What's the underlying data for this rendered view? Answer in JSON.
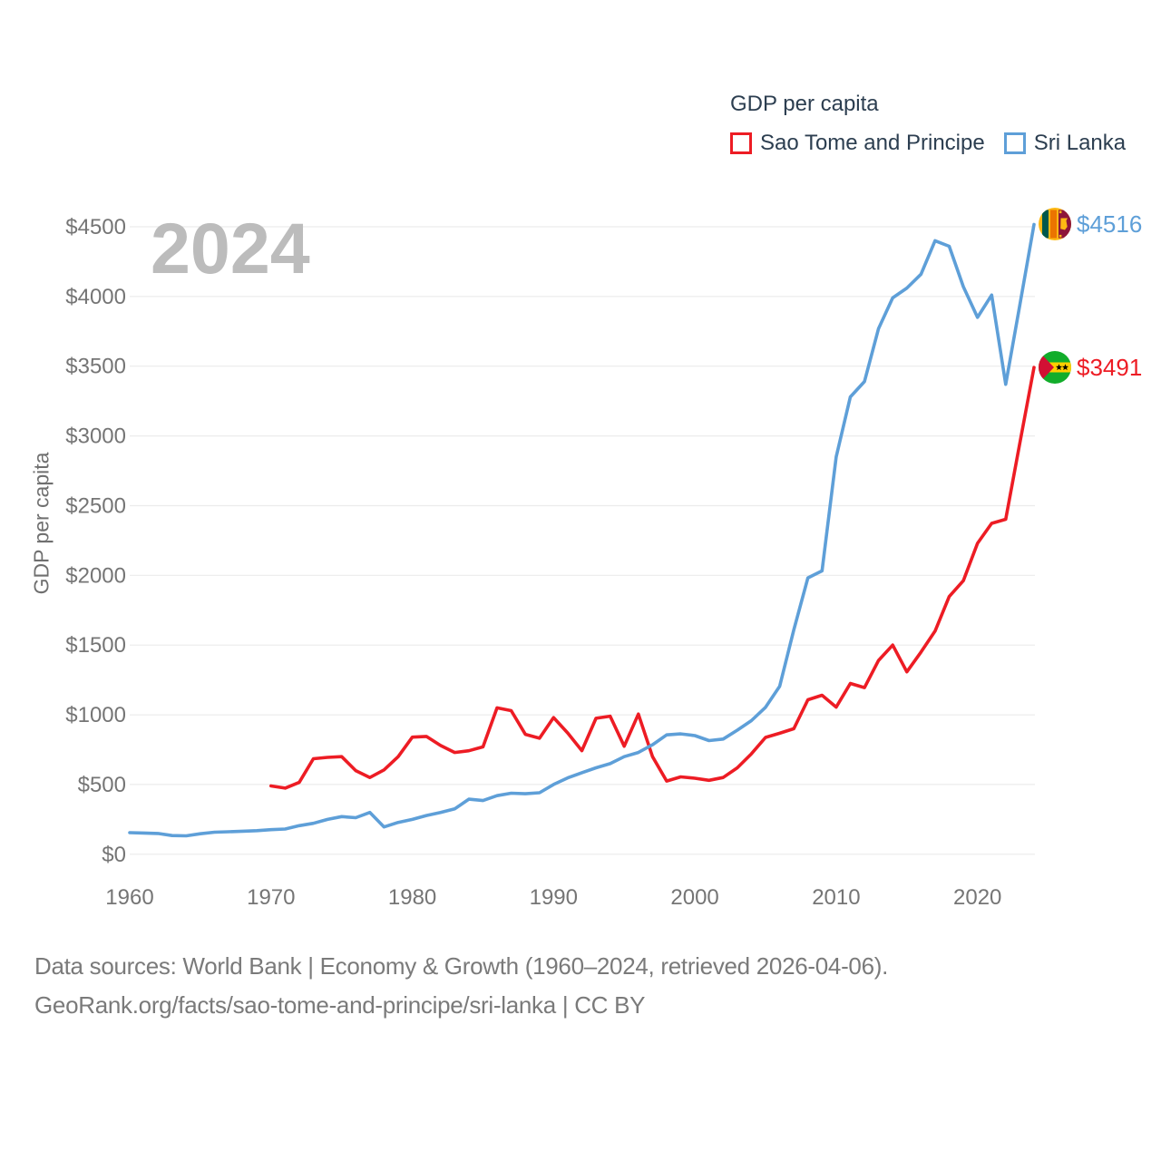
{
  "legend": {
    "title": "GDP per capita",
    "items": [
      {
        "label": "Sao Tome and Principe"
      },
      {
        "label": "Sri Lanka"
      }
    ]
  },
  "chart_data": {
    "type": "line",
    "title": "GDP per capita",
    "watermark": "2024",
    "ylabel": "GDP per capita",
    "xlabel": "",
    "grid": true,
    "legend_position": "top-right",
    "xlim": [
      1960,
      2024
    ],
    "ylim": [
      0,
      4700
    ],
    "ytick_values": [
      0,
      500,
      1000,
      1500,
      2000,
      2500,
      3000,
      3500,
      4000,
      4500
    ],
    "ytick_labels": [
      "$0",
      "$500",
      "$1000",
      "$1500",
      "$2000",
      "$2500",
      "$3000",
      "$3500",
      "$4000",
      "$4500"
    ],
    "xtick_values": [
      1960,
      1970,
      1980,
      1990,
      2000,
      2010,
      2020
    ],
    "series": [
      {
        "name": "Sao Tome and Principe",
        "color": "#ed1c24",
        "start_year": 1970,
        "values": [
          490,
          474,
          515,
          685,
          695,
          700,
          600,
          550,
          605,
          700,
          840,
          845,
          780,
          730,
          742,
          770,
          1050,
          1030,
          860,
          832,
          980,
          870,
          743,
          975,
          990,
          775,
          1005,
          700,
          525,
          555,
          545,
          530,
          550,
          620,
          720,
          838,
          868,
          900,
          1108,
          1140,
          1055,
          1225,
          1195,
          1390,
          1500,
          1308,
          1450,
          1600,
          1848,
          1962,
          2230,
          2373,
          2402,
          2950,
          3491
        ]
      },
      {
        "name": "Sri Lanka",
        "color": "#5e9fd8",
        "start_year": 1960,
        "values": [
          155,
          152,
          149,
          134,
          132,
          147,
          158,
          161,
          165,
          169,
          176,
          181,
          205,
          222,
          250,
          270,
          262,
          300,
          196,
          228,
          250,
          278,
          300,
          325,
          395,
          385,
          420,
          438,
          434,
          441,
          500,
          548,
          585,
          620,
          650,
          700,
          730,
          785,
          856,
          863,
          851,
          815,
          826,
          890,
          958,
          1054,
          1205,
          1610,
          1982,
          2032,
          2850,
          3280,
          3390,
          3770,
          3990,
          4060,
          4160,
          4400,
          4360,
          4070,
          3850,
          4010,
          3370,
          3940,
          4516
        ]
      }
    ],
    "end_labels": [
      {
        "series": "Sri Lanka",
        "text": "$4516",
        "value": 4516,
        "flag": "sri-lanka"
      },
      {
        "series": "Sao Tome and Principe",
        "text": "$3491",
        "value": 3491,
        "flag": "sao-tome-and-principe"
      }
    ]
  },
  "footer": {
    "line1": "Data sources: World Bank | Economy & Growth (1960–2024, retrieved 2026-04-06).",
    "line2": "GeoRank.org/facts/sao-tome-and-principe/sri-lanka | CC BY"
  }
}
